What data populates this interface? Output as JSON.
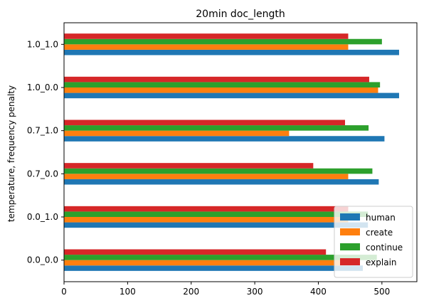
{
  "chart_data": {
    "type": "bar",
    "orientation": "horizontal",
    "title": "20min doc_length",
    "xlabel": "",
    "ylabel": "temperature, frequency penalty",
    "categories": [
      "0.0_0.0",
      "0.0_1.0",
      "0.7_0.0",
      "0.7_1.0",
      "1.0_0.0",
      "1.0_1.0"
    ],
    "xlim": [
      0,
      555
    ],
    "xticks": [
      0,
      100,
      200,
      300,
      400,
      500
    ],
    "legend_position": "bottom-right",
    "series": [
      {
        "name": "human",
        "color": "#1f77b4",
        "values": [
          470,
          478,
          495,
          504,
          527,
          527
        ]
      },
      {
        "name": "create",
        "color": "#ff7f0e",
        "values": [
          452,
          447,
          447,
          354,
          494,
          447
        ]
      },
      {
        "name": "continue",
        "color": "#2ca02c",
        "values": [
          492,
          478,
          485,
          479,
          497,
          500
        ]
      },
      {
        "name": "explain",
        "color": "#d62728",
        "values": [
          412,
          447,
          392,
          442,
          480,
          447
        ]
      }
    ]
  }
}
